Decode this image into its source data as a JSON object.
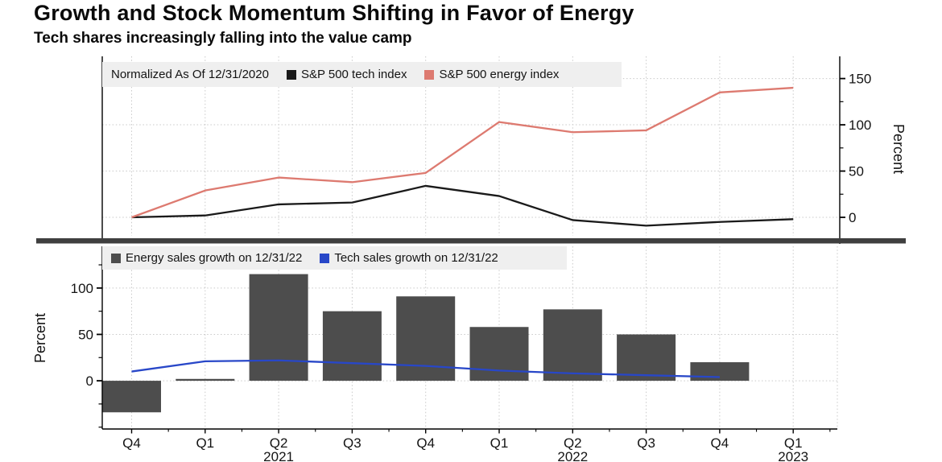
{
  "header": {
    "title": "Growth and Stock Momentum Shifting in Favor of Energy",
    "subtitle": "Tech shares increasingly falling into the value camp"
  },
  "colors": {
    "tech_line": "#1a1a1a",
    "energy_line": "#dd7a70",
    "energy_bar": "#4d4d4d",
    "tech_sales_line": "#2847c8",
    "legend_bg": "#efefef",
    "grid": "#c9c9c9",
    "axis": "#000000",
    "divider": "#3f3f3f",
    "text": "#141414"
  },
  "x_axis": {
    "categories": [
      "Q4",
      "Q1",
      "Q2",
      "Q3",
      "Q4",
      "Q1",
      "Q2",
      "Q3",
      "Q4",
      "Q1"
    ],
    "year_labels": [
      {
        "index": 2,
        "label": "2021"
      },
      {
        "index": 6,
        "label": "2022"
      },
      {
        "index": 9,
        "label": "2023"
      }
    ]
  },
  "chart_data": [
    {
      "type": "line",
      "panel": "top",
      "note": "Normalized As Of 12/31/2020",
      "categories": [
        "Q4 2020",
        "Q1 2021",
        "Q2 2021",
        "Q3 2021",
        "Q4 2021",
        "Q1 2022",
        "Q2 2022",
        "Q3 2022",
        "Q4 2022",
        "Q1 2023"
      ],
      "series": [
        {
          "name": "S&P 500 tech index",
          "color": "#1a1a1a",
          "values": [
            0,
            2,
            14,
            16,
            34,
            23,
            -3,
            -9,
            -5,
            -2
          ]
        },
        {
          "name": "S&P 500 energy index",
          "color": "#dd7a70",
          "values": [
            0,
            29,
            43,
            38,
            48,
            103,
            92,
            94,
            135,
            140
          ]
        }
      ],
      "ylabel": "Percent",
      "yticks": [
        0,
        50,
        100,
        150
      ],
      "yminorticks": [
        25,
        75,
        125
      ],
      "ylim": [
        -20,
        174
      ],
      "legend_position": "top-left",
      "grid": true
    },
    {
      "type": "bar",
      "panel": "bottom",
      "categories": [
        "Q4 2020",
        "Q1 2021",
        "Q2 2021",
        "Q3 2021",
        "Q4 2021",
        "Q1 2022",
        "Q2 2022",
        "Q3 2022",
        "Q4 2022",
        "Q1 2023"
      ],
      "series": [
        {
          "kind": "bar",
          "name": "Energy sales growth on 12/31/22",
          "color": "#4d4d4d",
          "values": [
            -34,
            2,
            115,
            75,
            91,
            58,
            77,
            50,
            20,
            null
          ]
        },
        {
          "kind": "line",
          "name": "Tech sales growth on 12/31/22",
          "color": "#2847c8",
          "values": [
            10,
            21,
            22,
            19,
            16,
            11,
            8,
            6,
            4,
            null
          ]
        }
      ],
      "ylabel": "Percent",
      "yticks": [
        0,
        50,
        100
      ],
      "yminorticks": [
        125,
        75,
        25,
        -25,
        -50
      ],
      "ylim": [
        -52,
        145
      ],
      "legend_position": "top-left",
      "grid": true
    }
  ]
}
